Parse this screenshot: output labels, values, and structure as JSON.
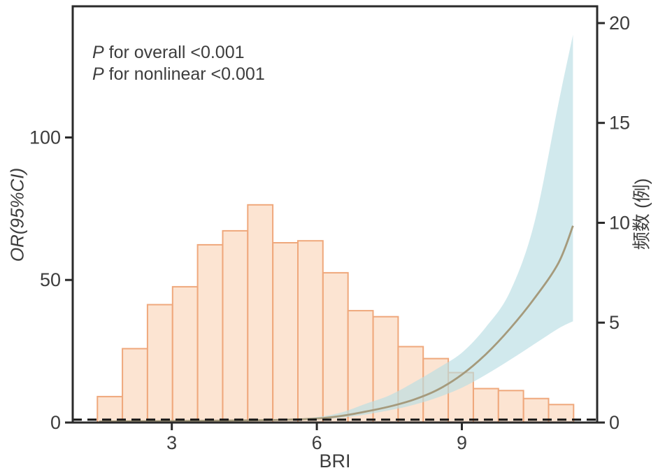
{
  "annotation": {
    "line1": {
      "p": "P",
      "rest": " for overall <0.001"
    },
    "line2": {
      "p": "P",
      "rest": " for nonlinear <0.001"
    }
  },
  "chart_data": {
    "type": "combo-histogram-spline",
    "title": "",
    "x_axis": {
      "label": "BRI",
      "ticks": [
        3,
        6,
        9
      ],
      "range": [
        0.95,
        11.8
      ]
    },
    "y_left": {
      "label": "OR(95%CI)",
      "ticks": [
        0,
        50,
        100
      ],
      "range": [
        0,
        146
      ]
    },
    "y_right": {
      "label": "频数 (例)",
      "ticks": [
        0,
        5,
        10,
        15,
        20
      ],
      "range": [
        0,
        20.84
      ]
    },
    "reference_line": {
      "or": 1,
      "style": "dashed",
      "color": "#141414"
    },
    "histogram": {
      "axis": "right",
      "bin_start": 1.46,
      "bin_width": 0.5186,
      "frequencies": [
        1.3,
        3.7,
        5.9,
        6.8,
        8.9,
        9.6,
        10.9,
        9.0,
        9.1,
        7.5,
        5.6,
        5.3,
        3.8,
        3.2,
        2.5,
        1.7,
        1.6,
        1.2,
        0.9
      ],
      "fill": "#fce4d2",
      "edge": "#efa87c"
    },
    "spline": {
      "axis": "left",
      "x": [
        1.5,
        2.5,
        3.5,
        4.5,
        5.4,
        6.0,
        6.5,
        7.0,
        7.5,
        8.0,
        8.5,
        9.0,
        9.5,
        10.0,
        10.5,
        11.0,
        11.3
      ],
      "or": [
        0.35,
        0.45,
        0.58,
        0.75,
        1.0,
        1.4,
        2.3,
        3.8,
        5.6,
        8.0,
        11.5,
        16.8,
        24.0,
        33.0,
        43.5,
        56.0,
        69.0
      ],
      "lo": [
        0.2,
        0.28,
        0.4,
        0.58,
        0.85,
        1.1,
        1.7,
        2.8,
        4.3,
        6.2,
        8.8,
        12.2,
        16.8,
        22.0,
        27.5,
        33.0,
        35.5
      ],
      "hi": [
        0.6,
        0.68,
        0.8,
        0.95,
        1.2,
        1.9,
        3.5,
        6.5,
        9.5,
        14.0,
        19.0,
        24.5,
        33.5,
        46.0,
        70.0,
        112.0,
        136.0
      ],
      "line_color": "#a59a7c",
      "band_color": "#b9dde4",
      "band_opacity": 0.65
    },
    "colors": {
      "frame": "#2a2a2a",
      "tick_label": "#3d3d3d"
    }
  }
}
